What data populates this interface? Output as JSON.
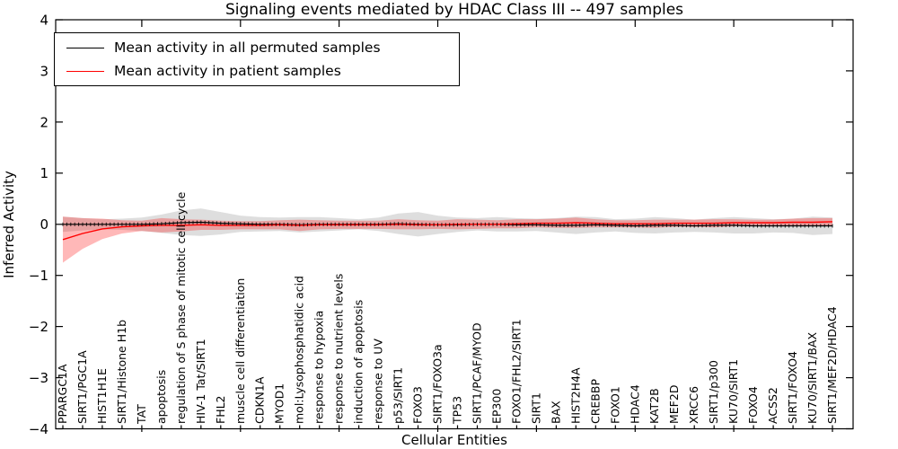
{
  "header": {
    "title": "Signaling events mediated by HDAC Class III -- 497 samples"
  },
  "legend": {
    "items": [
      {
        "label": "Mean activity in all permuted samples",
        "color": "#000000"
      },
      {
        "label": "Mean activity in patient samples",
        "color": "#ff0000"
      }
    ]
  },
  "chart_data": {
    "type": "line",
    "title": "Signaling events mediated by HDAC Class III -- 497 samples",
    "xlabel": "Cellular Entities",
    "ylabel": "Inferred Activity",
    "ylim": [
      -4,
      4
    ],
    "yticks": [
      -4,
      -3,
      -2,
      -1,
      0,
      1,
      2,
      3,
      4
    ],
    "ytick_labels": [
      "−4",
      "−3",
      "−2",
      "−1",
      "0",
      "1",
      "2",
      "3",
      "4"
    ],
    "grid": false,
    "legend_position": "upper left",
    "categories": [
      "PPARGC1A",
      "SIRT1/PGC1A",
      "HIST1H1E",
      "SIRT1/Histone H1b",
      "TAT",
      "apoptosis",
      "regulation of S phase of mitotic cell cycle",
      "HIV-1 Tat/SIRT1",
      "FHL2",
      "muscle cell differentiation",
      "CDKN1A",
      "MYOD1",
      "mol:Lysophosphatidic acid",
      "response to hypoxia",
      "response to nutrient levels",
      "induction of apoptosis",
      "response to UV",
      "p53/SIRT1",
      "FOXO3",
      "SIRT1/FOXO3a",
      "TP53",
      "SIRT1/PCAF/MYOD",
      "EP300",
      "FOXO1/FHL2/SIRT1",
      "SIRT1",
      "BAX",
      "HIST2H4A",
      "CREBBP",
      "FOXO1",
      "HDAC4",
      "KAT2B",
      "MEF2D",
      "XRCC6",
      "SIRT1/p300",
      "KU70/SIRT1",
      "FOXO4",
      "ACSS2",
      "SIRT1/FOXO4",
      "KU70/SIRT1/BAX",
      "SIRT1/MEF2D/HDAC4"
    ],
    "series": [
      {
        "name": "Mean activity in all permuted samples",
        "color": "#000000",
        "band_alpha": 0.13,
        "markers": "vertical-dash",
        "values": [
          0.0,
          0.0,
          0.0,
          0.0,
          0.0,
          0.01,
          0.03,
          0.04,
          0.02,
          0.01,
          0.0,
          0.0,
          -0.01,
          0.0,
          0.0,
          0.0,
          0.0,
          0.01,
          0.0,
          -0.01,
          -0.01,
          0.0,
          0.0,
          -0.01,
          -0.01,
          -0.02,
          -0.02,
          -0.01,
          -0.02,
          -0.03,
          -0.02,
          -0.02,
          -0.03,
          -0.02,
          -0.02,
          -0.03,
          -0.03,
          -0.03,
          -0.03,
          -0.03
        ],
        "std": [
          0.15,
          0.12,
          0.1,
          0.11,
          0.13,
          0.18,
          0.24,
          0.27,
          0.22,
          0.16,
          0.14,
          0.13,
          0.15,
          0.14,
          0.12,
          0.1,
          0.13,
          0.2,
          0.24,
          0.18,
          0.14,
          0.12,
          0.14,
          0.13,
          0.12,
          0.14,
          0.17,
          0.15,
          0.12,
          0.14,
          0.16,
          0.14,
          0.12,
          0.14,
          0.16,
          0.15,
          0.13,
          0.14,
          0.18,
          0.16
        ]
      },
      {
        "name": "Mean activity in patient samples",
        "color": "#ff0000",
        "band_alpha": 0.28,
        "markers": "none",
        "values": [
          -0.3,
          -0.18,
          -0.09,
          -0.05,
          -0.03,
          -0.02,
          -0.02,
          -0.01,
          -0.02,
          -0.02,
          -0.02,
          -0.01,
          -0.02,
          -0.01,
          -0.01,
          -0.01,
          -0.01,
          0.0,
          -0.01,
          -0.01,
          0.0,
          0.0,
          0.0,
          0.01,
          0.02,
          0.02,
          0.03,
          0.02,
          0.01,
          0.01,
          0.01,
          0.02,
          0.02,
          0.02,
          0.03,
          0.03,
          0.03,
          0.04,
          0.04,
          0.05
        ],
        "std": [
          0.45,
          0.3,
          0.2,
          0.13,
          0.1,
          0.14,
          0.12,
          0.1,
          0.09,
          0.08,
          0.08,
          0.09,
          0.11,
          0.09,
          0.08,
          0.08,
          0.08,
          0.1,
          0.09,
          0.08,
          0.1,
          0.09,
          0.08,
          0.09,
          0.08,
          0.09,
          0.1,
          0.08,
          0.07,
          0.07,
          0.08,
          0.07,
          0.07,
          0.08,
          0.07,
          0.06,
          0.06,
          0.07,
          0.08,
          0.07
        ]
      }
    ]
  }
}
